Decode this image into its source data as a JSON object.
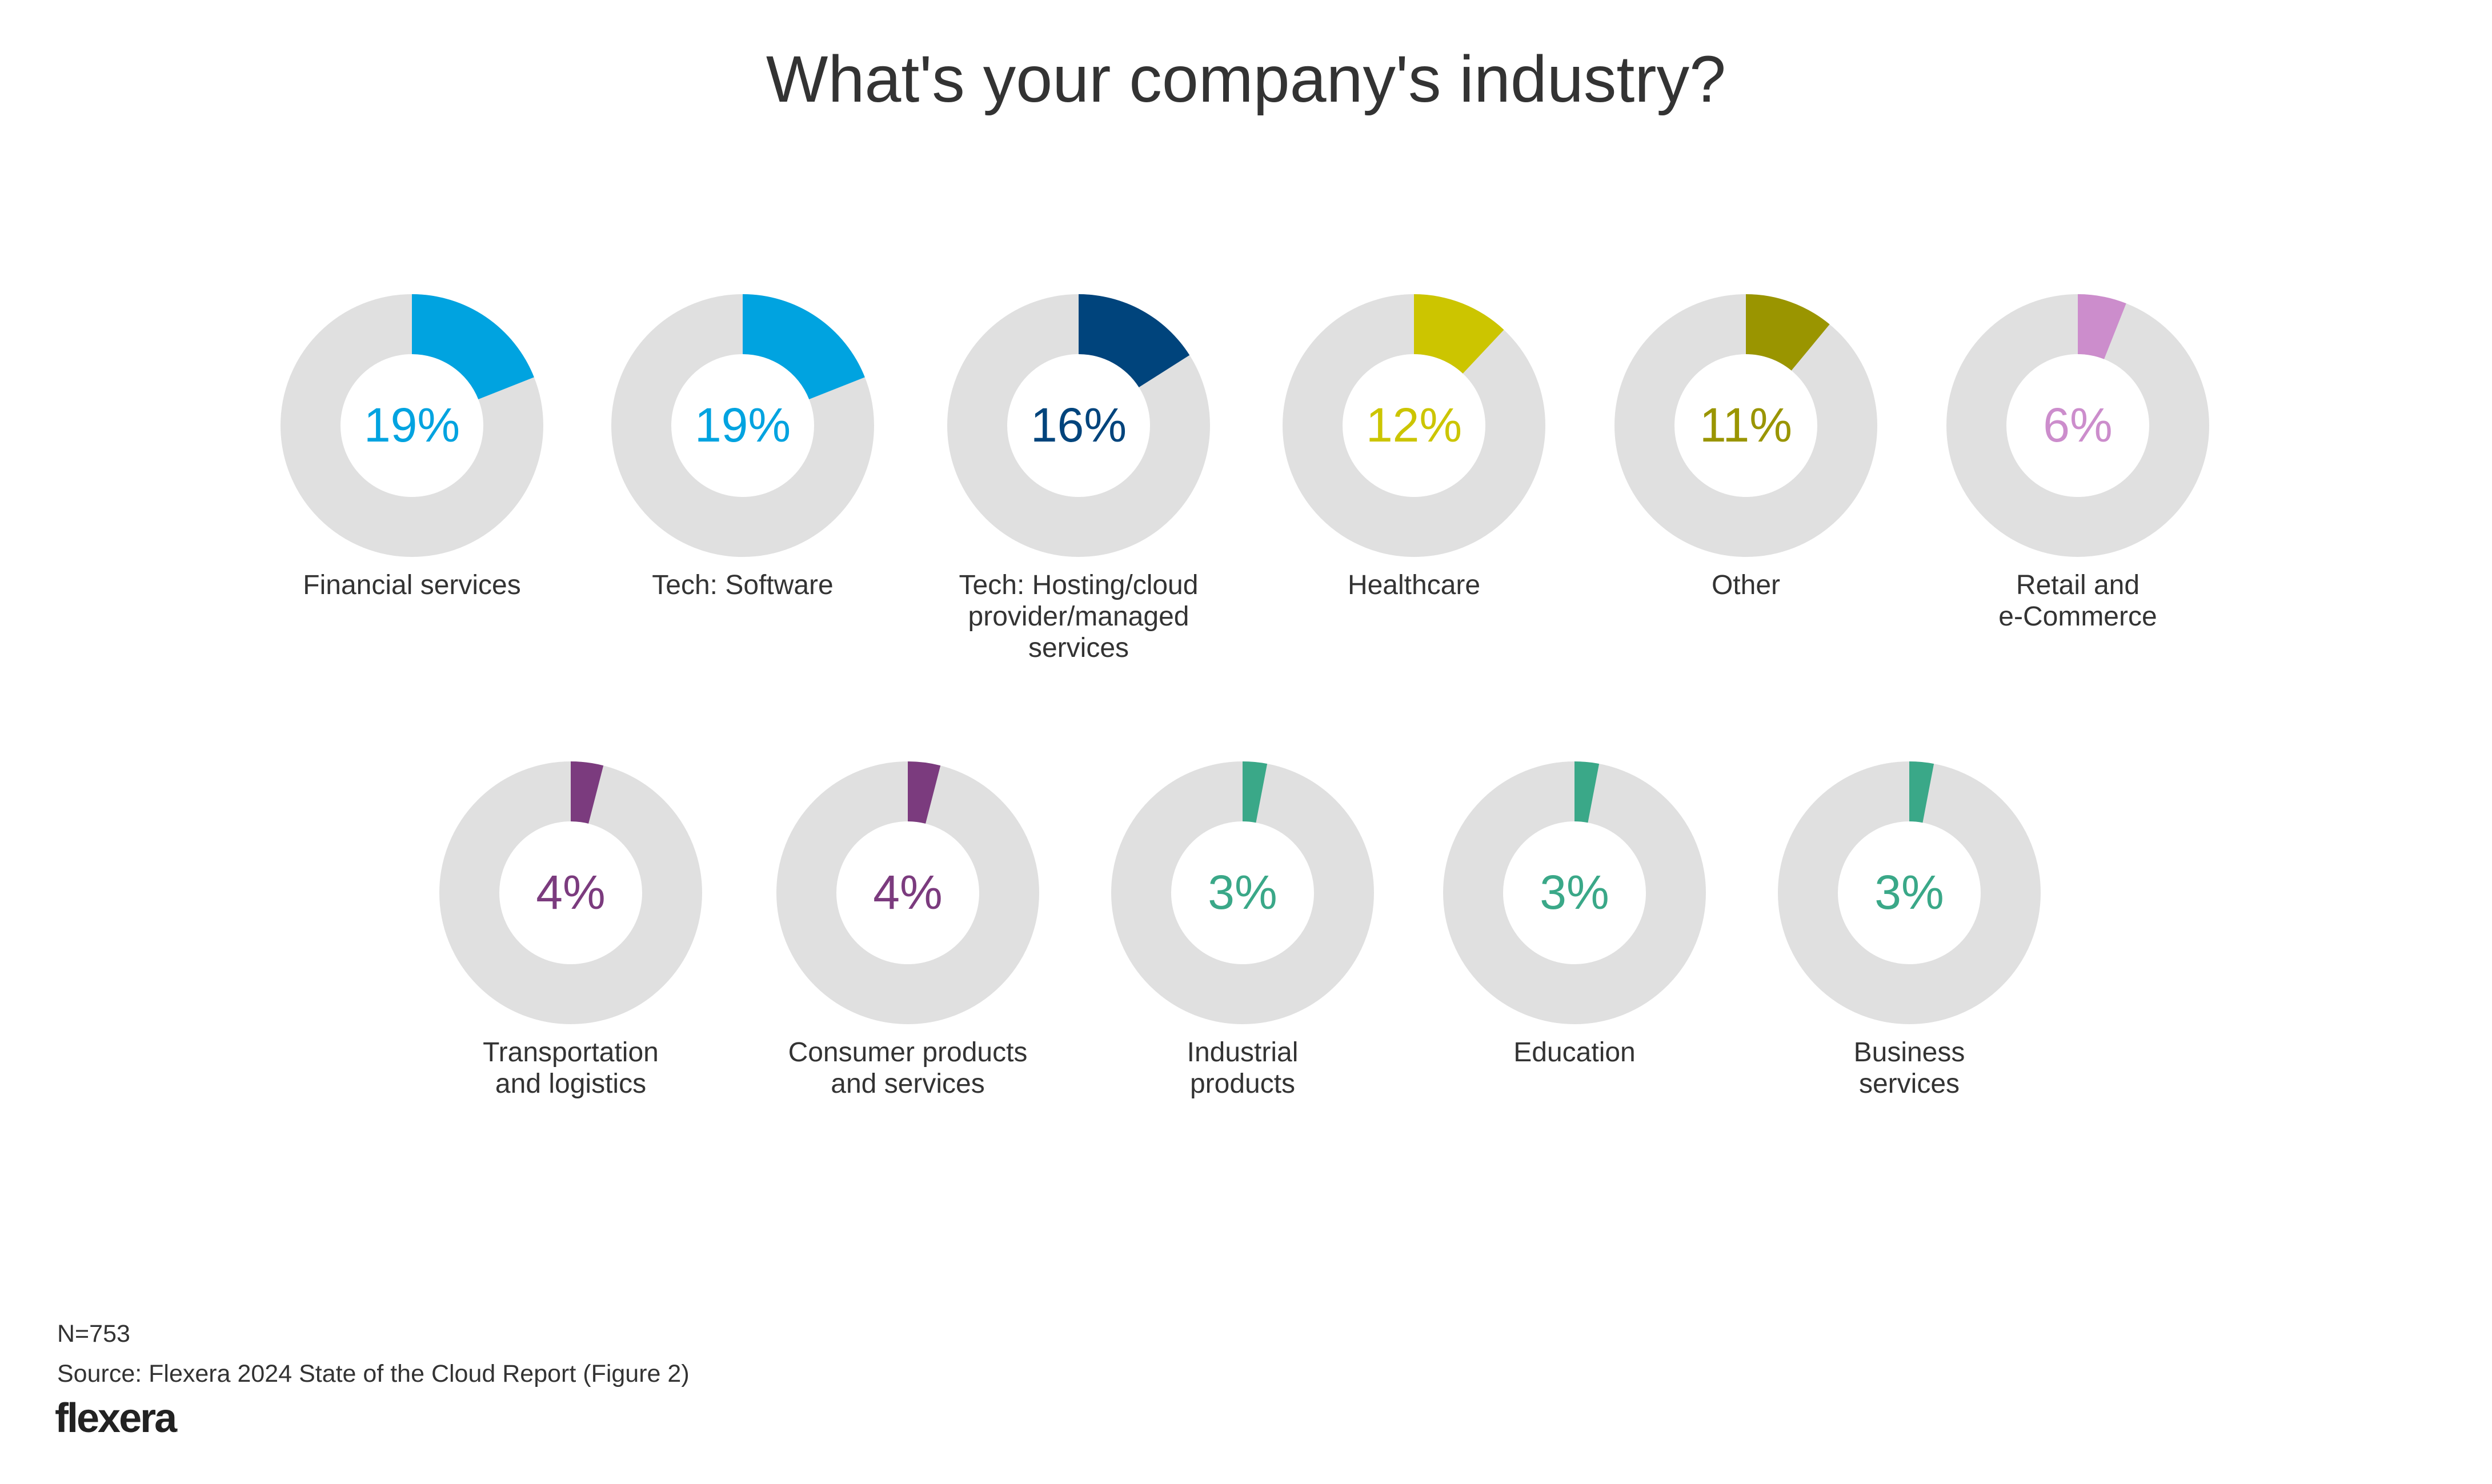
{
  "title": "What's your company's industry?",
  "footer": {
    "n": "N=753",
    "source": "Source: Flexera 2024 State of the Cloud Report (Figure 2)",
    "logo": "flexera"
  },
  "chart_data": {
    "type": "pie",
    "variant": "donut",
    "background_ring_color": "#E0E0E0",
    "items": [
      {
        "label": [
          "Financial services"
        ],
        "value": 19,
        "display": "19%",
        "color": "#00A3E0"
      },
      {
        "label": [
          "Tech: Software"
        ],
        "value": 19,
        "display": "19%",
        "color": "#00A3E0"
      },
      {
        "label": [
          "Tech: Hosting/cloud",
          "provider/managed",
          "services"
        ],
        "value": 16,
        "display": "16%",
        "color": "#00447C"
      },
      {
        "label": [
          "Healthcare"
        ],
        "value": 12,
        "display": "12%",
        "color": "#CCC500"
      },
      {
        "label": [
          "Other"
        ],
        "value": 11,
        "display": "11%",
        "color": "#9A9500"
      },
      {
        "label": [
          "Retail and",
          "e-Commerce"
        ],
        "value": 6,
        "display": "6%",
        "color": "#CC8DCC"
      },
      {
        "label": [
          "Transportation",
          "and logistics"
        ],
        "value": 4,
        "display": "4%",
        "color": "#7B3B7E"
      },
      {
        "label": [
          "Consumer products",
          "and services"
        ],
        "value": 4,
        "display": "4%",
        "color": "#7B3B7E"
      },
      {
        "label": [
          "Industrial",
          "products"
        ],
        "value": 3,
        "display": "3%",
        "color": "#3AA888"
      },
      {
        "label": [
          "Education"
        ],
        "value": 3,
        "display": "3%",
        "color": "#3AA888"
      },
      {
        "label": [
          "Business",
          "services"
        ],
        "value": 3,
        "display": "3%",
        "color": "#3AA888"
      }
    ]
  }
}
